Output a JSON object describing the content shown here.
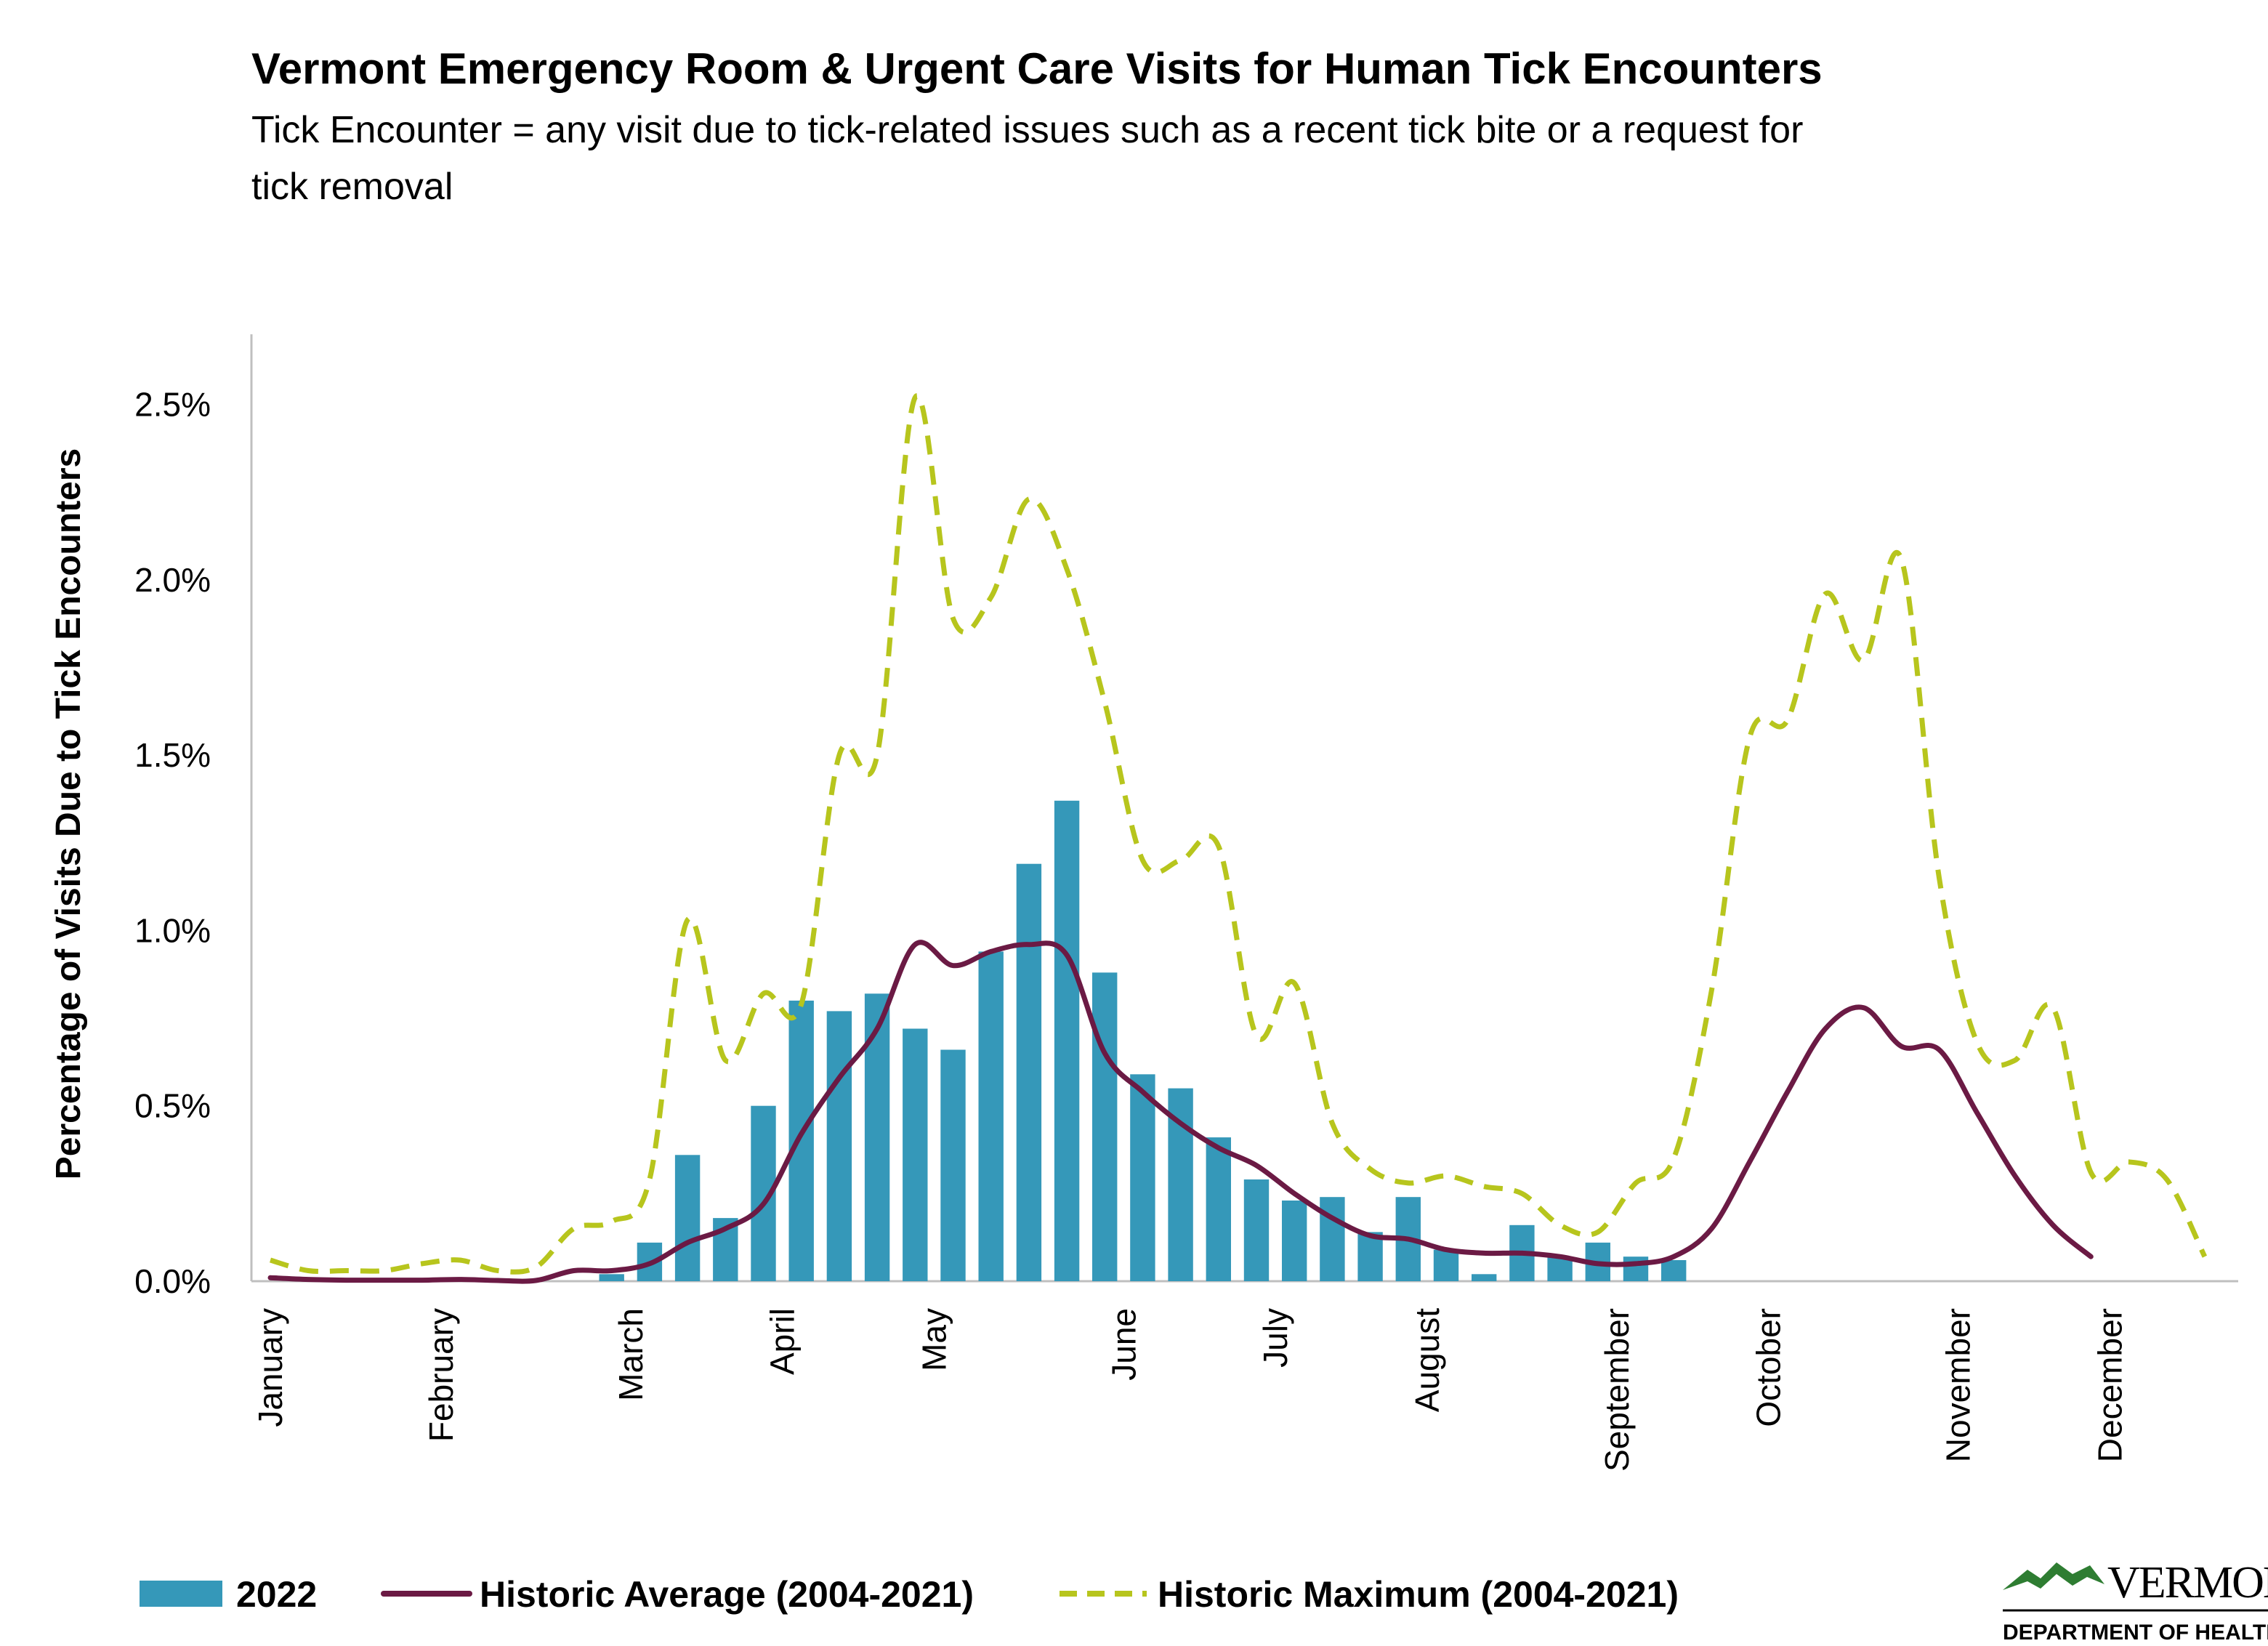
{
  "chart_data": {
    "type": "bar",
    "title": "Vermont Emergency Room & Urgent Care Visits for Human Tick Encounters",
    "subtitle_lines": [
      "Tick Encounter = any visit due to tick-related issues such as a recent tick bite or a request for",
      "tick removal"
    ],
    "ylabel": "Percentage of Visits Due to Tick Encounters",
    "xlabel": "",
    "ylim": [
      0,
      0.027
    ],
    "xlim": [
      1,
      52.5
    ],
    "y_ticks": [
      {
        "value": 0,
        "label": "0.0%"
      },
      {
        "value": 0.005,
        "label": "0.5%"
      },
      {
        "value": 0.01,
        "label": "1.0%"
      },
      {
        "value": 0.015,
        "label": "1.5%"
      },
      {
        "value": 0.02,
        "label": "2.0%"
      },
      {
        "value": 0.025,
        "label": "2.5%"
      }
    ],
    "x_ticks": [
      {
        "week": 1,
        "label": "January"
      },
      {
        "week": 5.5,
        "label": "February"
      },
      {
        "week": 10.5,
        "label": "March"
      },
      {
        "week": 14.5,
        "label": "April"
      },
      {
        "week": 18.5,
        "label": "May"
      },
      {
        "week": 23.5,
        "label": "June"
      },
      {
        "week": 27.5,
        "label": "July"
      },
      {
        "week": 31.5,
        "label": "August"
      },
      {
        "week": 36.5,
        "label": "September"
      },
      {
        "week": 40.5,
        "label": "October"
      },
      {
        "week": 45.5,
        "label": "November"
      },
      {
        "week": 49.5,
        "label": "December"
      }
    ],
    "grid": false,
    "legend_position": "bottom",
    "series": [
      {
        "name": "2022",
        "type": "bar",
        "color": "#3598b9",
        "x": [
          10,
          11,
          12,
          13,
          14,
          15,
          16,
          17,
          18,
          19,
          20,
          21,
          22,
          23,
          24,
          25,
          26,
          27,
          28,
          29,
          30,
          31,
          32,
          33,
          34,
          35,
          36,
          37,
          38
        ],
        "values": [
          0.0002,
          0.0011,
          0.0036,
          0.0018,
          0.005,
          0.008,
          0.0077,
          0.0082,
          0.0072,
          0.0066,
          0.0094,
          0.0119,
          0.0137,
          0.0088,
          0.0059,
          0.0055,
          0.0041,
          0.0029,
          0.0023,
          0.0024,
          0.0014,
          0.0024,
          0.0009,
          0.0002,
          0.0016,
          0.0007,
          0.0011,
          0.0007,
          0.0006
        ]
      },
      {
        "name": "Historic Average (2004-2021)",
        "type": "line",
        "style": "solid",
        "color": "#6b1a44",
        "x": [
          1,
          2,
          3,
          4,
          5,
          6,
          7,
          8,
          9,
          10,
          11,
          12,
          13,
          14,
          15,
          16,
          17,
          18,
          19,
          20,
          21,
          22,
          23,
          24,
          25,
          26,
          27,
          28,
          29,
          30,
          31,
          32,
          33,
          34,
          35,
          36,
          37,
          38,
          39,
          40,
          41,
          42,
          43,
          44,
          45,
          46,
          47,
          48,
          49
        ],
        "values": [
          0.0001,
          5e-05,
          3e-05,
          3e-05,
          3e-05,
          5e-05,
          2e-05,
          2e-05,
          0.0003,
          0.0003,
          0.0005,
          0.0011,
          0.0015,
          0.0022,
          0.0042,
          0.0058,
          0.0072,
          0.0096,
          0.009,
          0.0094,
          0.0096,
          0.0093,
          0.0065,
          0.0054,
          0.0045,
          0.0038,
          0.0033,
          0.0025,
          0.0018,
          0.0013,
          0.0012,
          0.0009,
          0.0008,
          0.0008,
          0.0007,
          0.0005,
          0.0005,
          0.0007,
          0.0015,
          0.0034,
          0.0054,
          0.0072,
          0.0078,
          0.0067,
          0.0066,
          0.0048,
          0.003,
          0.0016,
          0.0007
        ]
      },
      {
        "name": "Historic Maximum (2004-2021)",
        "type": "line",
        "style": "dashed",
        "color": "#b7c51d",
        "x": [
          1,
          2,
          3,
          4,
          5,
          6,
          7,
          8,
          9,
          10,
          11,
          12,
          13,
          14,
          15,
          16,
          17,
          18,
          19,
          20,
          21,
          22,
          23,
          24,
          25,
          26,
          27,
          28,
          29,
          30,
          31,
          32,
          33,
          34,
          35,
          36,
          37,
          38,
          39,
          40,
          41,
          42,
          43,
          44,
          45,
          46,
          47,
          48,
          49,
          50,
          51,
          52
        ],
        "values": [
          0.0006,
          0.0003,
          0.0003,
          0.0003,
          0.0005,
          0.0006,
          0.0003,
          0.0004,
          0.0015,
          0.0017,
          0.0029,
          0.0103,
          0.0063,
          0.0082,
          0.0079,
          0.015,
          0.015,
          0.0252,
          0.0189,
          0.0195,
          0.0223,
          0.0203,
          0.0165,
          0.012,
          0.012,
          0.0124,
          0.007,
          0.0085,
          0.0045,
          0.0032,
          0.0028,
          0.003,
          0.0027,
          0.0025,
          0.0016,
          0.0014,
          0.0028,
          0.0035,
          0.0083,
          0.0155,
          0.016,
          0.0196,
          0.0177,
          0.0206,
          0.0115,
          0.0068,
          0.0063,
          0.0078,
          0.0031,
          0.0034,
          0.0029,
          0.0007
        ]
      }
    ]
  },
  "legend": [
    {
      "label": "2022",
      "kind": "bar",
      "color": "#3598b9"
    },
    {
      "label": "Historic Average (2004-2021)",
      "kind": "solid",
      "color": "#6b1a44"
    },
    {
      "label": "Historic Maximum (2004-2021)",
      "kind": "dashed",
      "color": "#b7c51d"
    }
  ],
  "logo": {
    "word": "VERMONT",
    "subtitle": "DEPARTMENT OF HEALTH",
    "icon": "green-mountains-icon",
    "color": "#2e7d32"
  }
}
